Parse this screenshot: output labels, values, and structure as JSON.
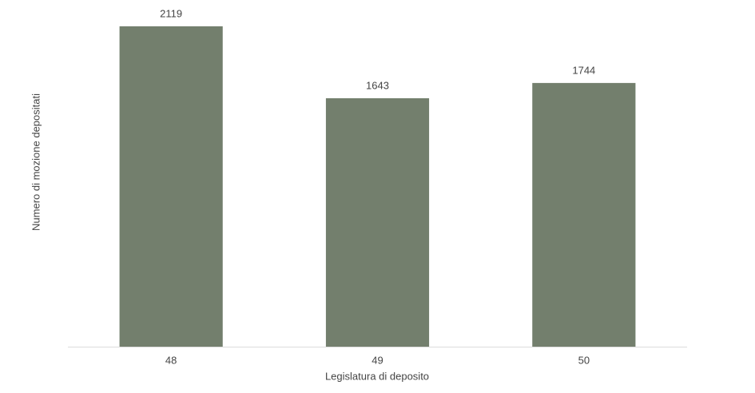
{
  "chart_data": {
    "type": "bar",
    "x_label": "Legislatura di deposito",
    "y_label": "Numero di mozione depositati",
    "categories": [
      "48",
      "49",
      "50"
    ],
    "values": [
      2119,
      1643,
      1744
    ],
    "color": "#737f6d",
    "ylim": [
      0,
      2240
    ]
  }
}
